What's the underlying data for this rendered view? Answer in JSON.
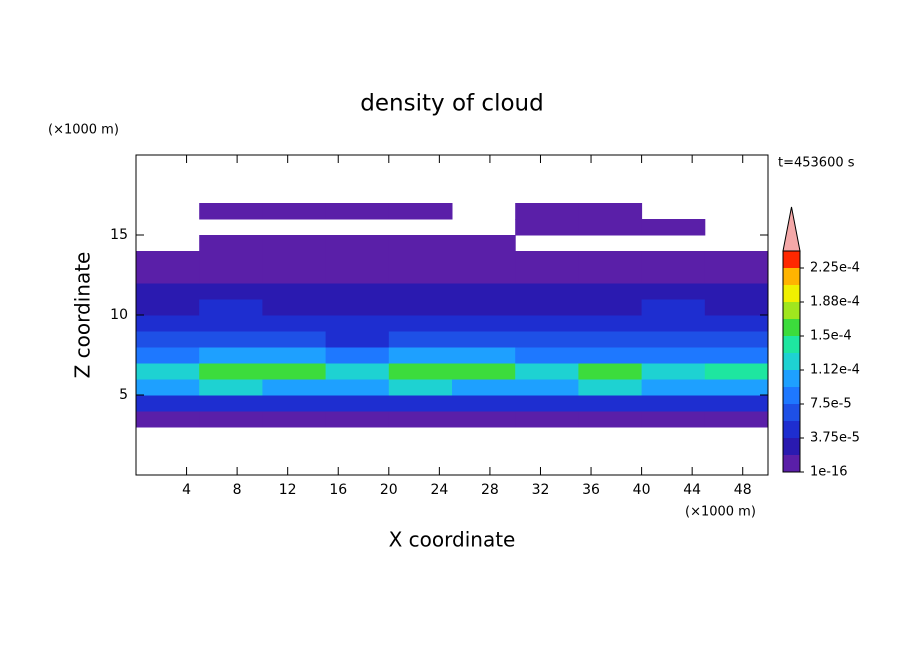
{
  "chart_data": {
    "type": "contour",
    "title": "density of cloud",
    "x_label": "X coordinate",
    "y_label": "Z coordinate",
    "x_unit": "(×1000 m)",
    "y_unit": "(×1000 m)",
    "annotation": "t=453600 s",
    "xlim": [
      0,
      50
    ],
    "ylim": [
      0,
      20
    ],
    "xticks": [
      4,
      8,
      12,
      16,
      20,
      24,
      28,
      32,
      36,
      40,
      44,
      48
    ],
    "yticks": [
      5,
      10,
      15
    ],
    "x_bins": [
      0,
      5,
      10,
      15,
      20,
      25,
      30,
      35,
      40,
      45,
      50
    ],
    "z_bins": [
      3,
      4,
      5,
      6,
      7,
      8,
      9,
      10,
      11,
      12,
      13,
      14,
      15,
      16,
      17
    ],
    "values": [
      [
        1e-05,
        1e-05,
        1e-05,
        1e-05,
        1e-05,
        1e-05,
        1e-05,
        1e-05,
        1e-05,
        1e-05
      ],
      [
        5e-05,
        4.5e-05,
        5e-05,
        5e-05,
        5.5e-05,
        5e-05,
        5e-05,
        5e-05,
        5e-05,
        5e-05
      ],
      [
        0.00011,
        0.00012,
        0.00011,
        0.000105,
        0.00012,
        0.00011,
        0.000105,
        0.000115,
        0.000105,
        0.00011
      ],
      [
        0.00013,
        0.00016,
        0.000155,
        0.00013,
        0.00016,
        0.00016,
        0.00013,
        0.000155,
        0.000125,
        0.00014
      ],
      [
        9e-05,
        0.0001,
        9.5e-05,
        8.5e-05,
        0.0001,
        0.0001,
        9e-05,
        9e-05,
        8e-05,
        9e-05
      ],
      [
        6e-05,
        6.5e-05,
        6e-05,
        5.5e-05,
        6e-05,
        6e-05,
        6.5e-05,
        7e-05,
        6e-05,
        6e-05
      ],
      [
        4e-05,
        4.5e-05,
        4e-05,
        4e-05,
        4e-05,
        4e-05,
        4e-05,
        4.5e-05,
        4.5e-05,
        4e-05
      ],
      [
        3.5e-05,
        4.5e-05,
        3.5e-05,
        3e-05,
        3e-05,
        3e-05,
        3e-05,
        3.5e-05,
        4e-05,
        3.5e-05
      ],
      [
        2.5e-05,
        2.5e-05,
        2e-05,
        2e-05,
        2e-05,
        2e-05,
        2e-05,
        2.5e-05,
        2.5e-05,
        2.5e-05
      ],
      [
        1.5e-05,
        1.5e-05,
        1.5e-05,
        1.5e-05,
        1.5e-05,
        1.5e-05,
        1.5e-05,
        1.5e-05,
        1.5e-05,
        1.5e-05
      ],
      [
        8e-06,
        8e-06,
        8e-06,
        8e-06,
        8e-06,
        8e-06,
        8e-06,
        8e-06,
        8e-06,
        8e-06
      ],
      [
        null,
        5e-06,
        5e-06,
        5e-06,
        5e-06,
        5e-06,
        null,
        null,
        null,
        null
      ],
      [
        null,
        null,
        null,
        null,
        null,
        null,
        5e-06,
        5e-06,
        5e-06,
        null
      ],
      [
        null,
        3e-06,
        3e-06,
        3e-06,
        3e-06,
        null,
        5e-06,
        5e-06,
        null,
        null
      ]
    ],
    "colorbar": {
      "levels": [
        1e-16,
        1.875e-05,
        3.75e-05,
        5.625e-05,
        7.5e-05,
        9.375e-05,
        0.0001125,
        0.00013125,
        0.00015,
        0.00016875,
        0.0001875,
        0.00020625,
        0.000225,
        0.00024375
      ],
      "colors": [
        "#5a1fa8",
        "#2a1ab0",
        "#1e2ed0",
        "#1e50e6",
        "#1e78ff",
        "#1ea0ff",
        "#1ed2d2",
        "#1ee6a0",
        "#3cdc3c",
        "#a0e61e",
        "#f0f000",
        "#ffb400",
        "#ff2800"
      ],
      "extend_color": "#f4a8a8",
      "ticks": [
        {
          "value": 1e-16,
          "label": "1e-16"
        },
        {
          "value": 3.75e-05,
          "label": "3.75e-5"
        },
        {
          "value": 7.5e-05,
          "label": "7.5e-5"
        },
        {
          "value": 0.0001125,
          "label": "1.12e-4"
        },
        {
          "value": 0.00015,
          "label": "1.5e-4"
        },
        {
          "value": 0.0001875,
          "label": "1.88e-4"
        },
        {
          "value": 0.000225,
          "label": "2.25e-4"
        }
      ]
    }
  }
}
